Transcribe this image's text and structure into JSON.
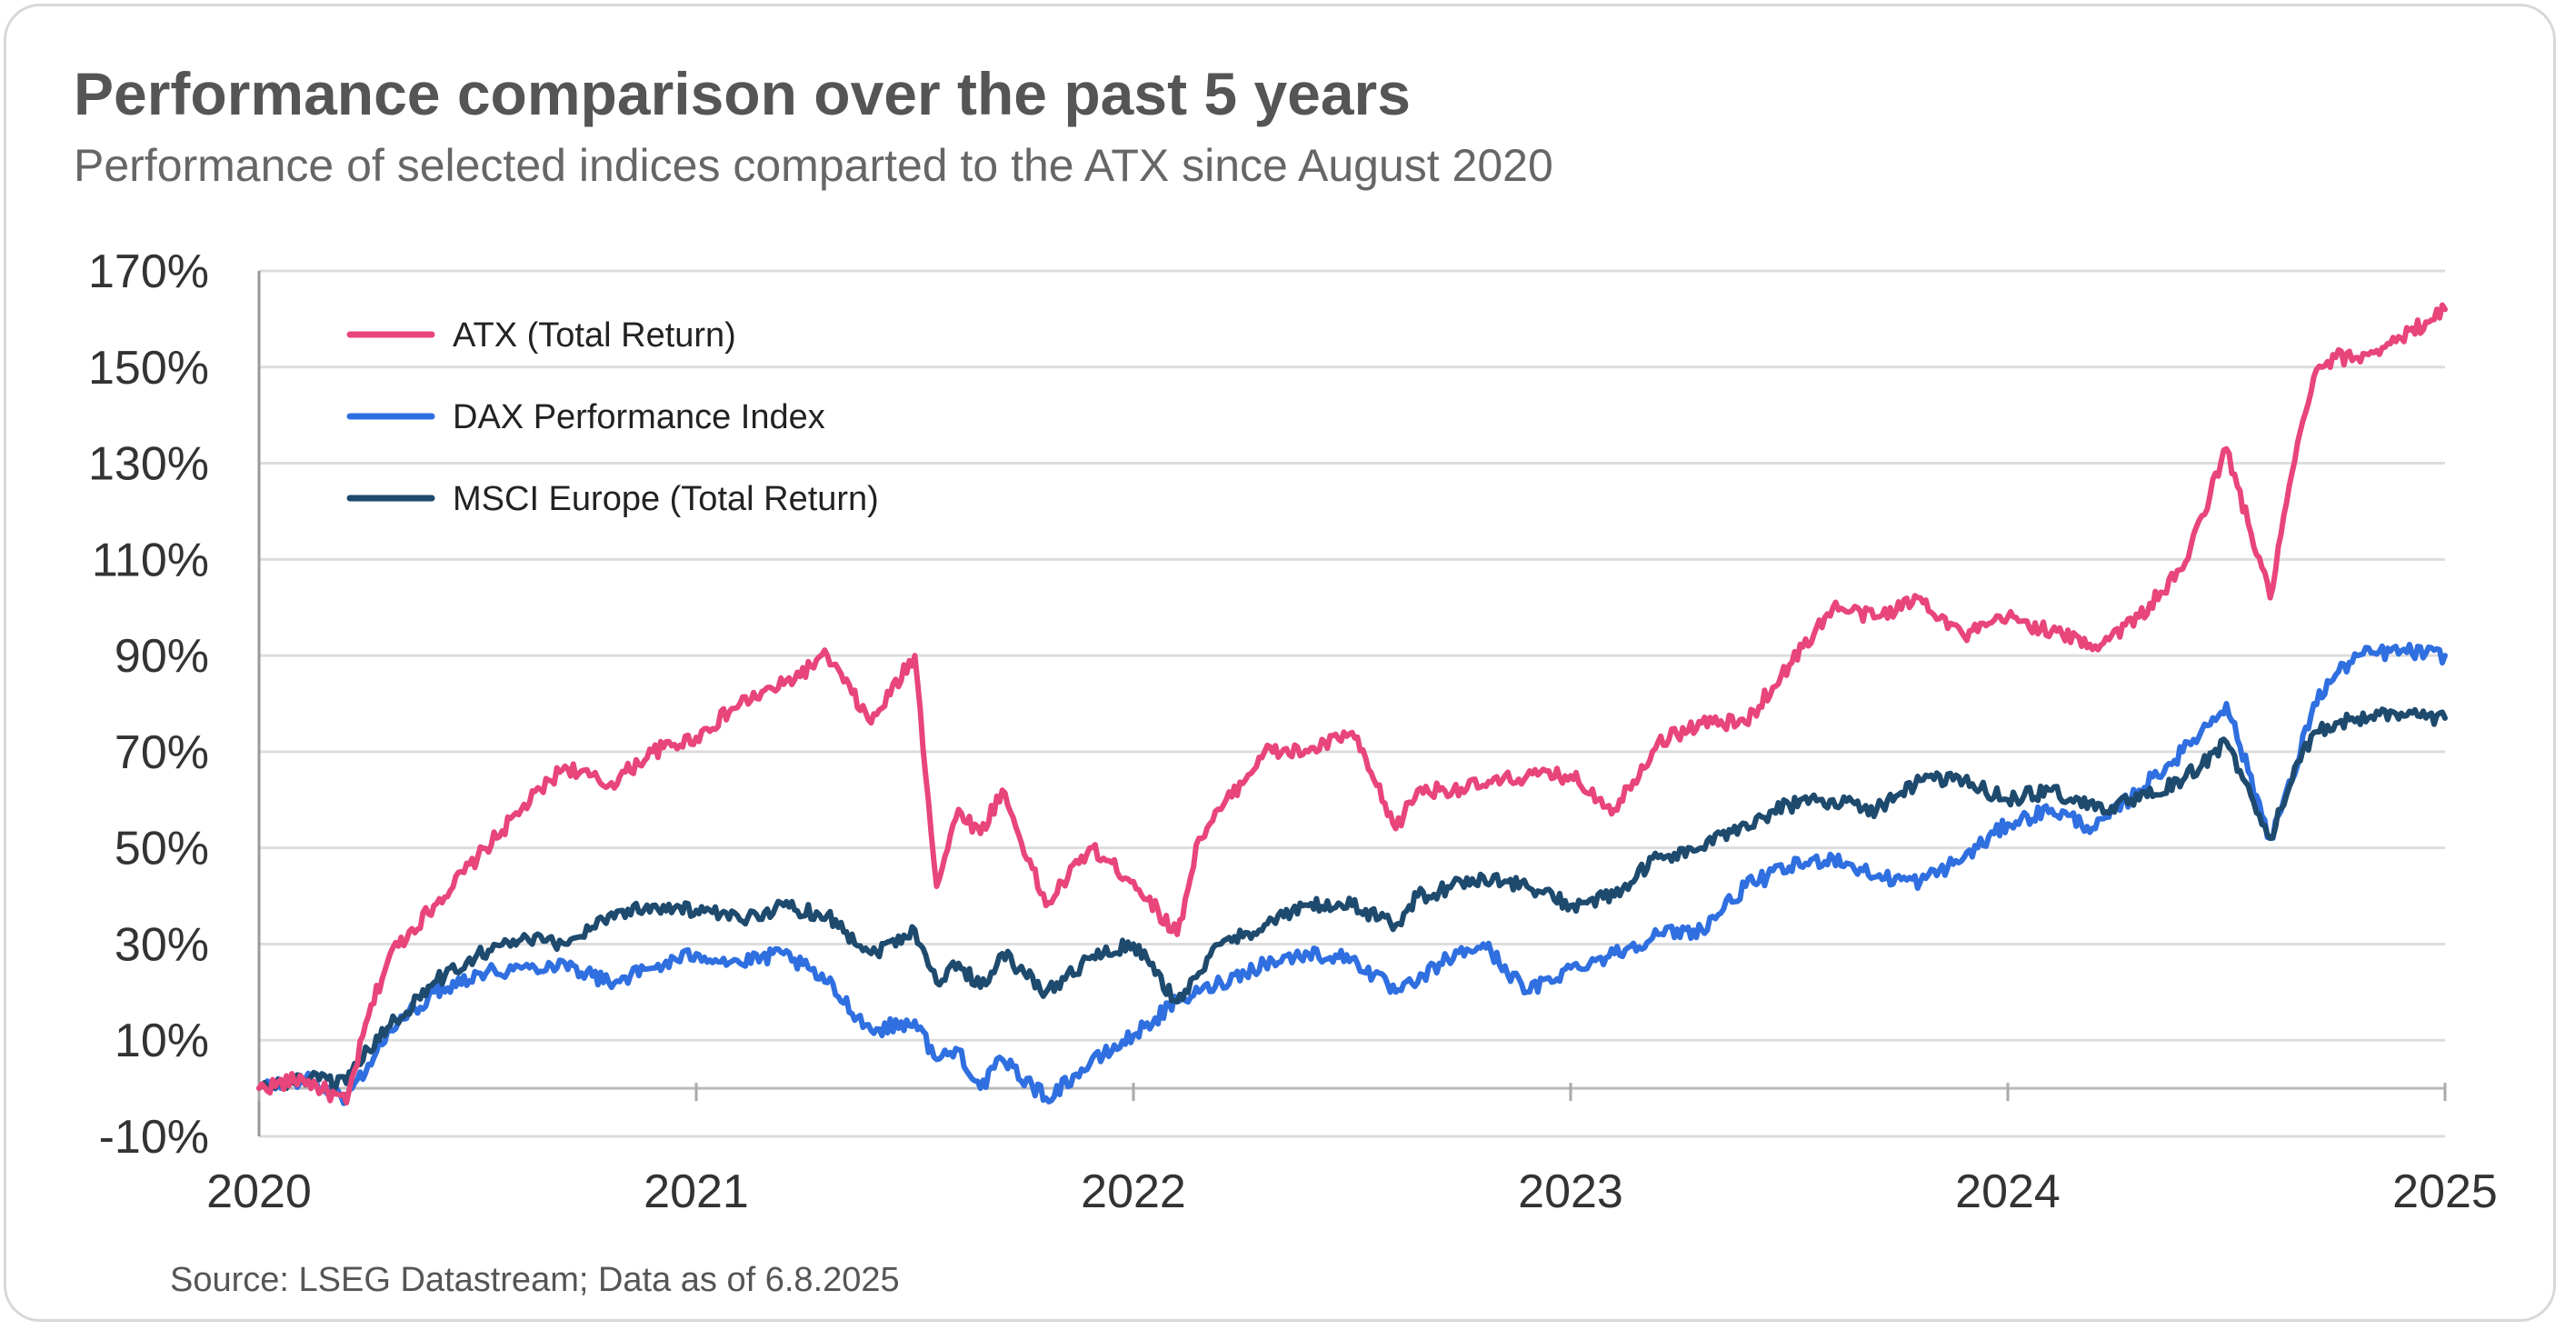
{
  "chart_data": {
    "type": "line",
    "title": "Performance comparison over the past 5 years",
    "subtitle": "Performance of selected indices comparted to the ATX since August 2020",
    "source": "Source: LSEG Datastream; Data as of 6.8.2025",
    "xlabel": "",
    "ylabel": "",
    "xlim": [
      2020.0,
      2025.0
    ],
    "ylim": [
      -10,
      170
    ],
    "x_ticks": [
      "2020",
      "2021",
      "2022",
      "2023",
      "2024",
      "2025"
    ],
    "y_ticks": [
      "-10%",
      "10%",
      "30%",
      "50%",
      "70%",
      "90%",
      "110%",
      "130%",
      "150%",
      "170%"
    ],
    "grid": "horizontal",
    "legend_position": "top-left",
    "x": [
      2020.0,
      2020.1,
      2020.2,
      2020.25,
      2020.3,
      2020.4,
      2020.5,
      2020.6,
      2020.7,
      2020.8,
      2020.9,
      2021.0,
      2021.1,
      2021.2,
      2021.3,
      2021.4,
      2021.5,
      2021.55,
      2021.6,
      2021.65,
      2021.7,
      2021.8,
      2021.9,
      2022.0,
      2022.1,
      2022.15,
      2022.2,
      2022.3,
      2022.4,
      2022.5,
      2022.6,
      2022.65,
      2022.7,
      2022.8,
      2022.9,
      2023.0,
      2023.1,
      2023.2,
      2023.3,
      2023.4,
      2023.5,
      2023.6,
      2023.7,
      2023.8,
      2023.9,
      2024.0,
      2024.1,
      2024.2,
      2024.3,
      2024.4,
      2024.5,
      2024.6,
      2024.65,
      2024.7,
      2024.75,
      2024.8,
      2024.9,
      2025.0
    ],
    "series": [
      {
        "name": "ATX (Total Return)",
        "color": "#e8457a",
        "values": [
          0,
          2,
          -3,
          15,
          28,
          38,
          48,
          58,
          67,
          63,
          70,
          73,
          80,
          84,
          90,
          76,
          90,
          42,
          58,
          53,
          62,
          38,
          50,
          43,
          32,
          52,
          58,
          70,
          70,
          74,
          54,
          62,
          62,
          63,
          65,
          65,
          58,
          72,
          76,
          76,
          88,
          100,
          98,
          102,
          94,
          98,
          95,
          92,
          98,
          108,
          133,
          102,
          128,
          148,
          152,
          152,
          156,
          162
        ]
      },
      {
        "name": "DAX Performance Index",
        "color": "#2f6fe0",
        "values": [
          0,
          2,
          -2,
          5,
          12,
          20,
          24,
          25,
          26,
          22,
          25,
          28,
          26,
          28,
          22,
          12,
          14,
          6,
          8,
          0,
          6,
          -2,
          5,
          11,
          18,
          20,
          22,
          26,
          28,
          27,
          20,
          22,
          26,
          30,
          20,
          25,
          28,
          32,
          33,
          42,
          46,
          48,
          44,
          43,
          48,
          55,
          58,
          54,
          62,
          70,
          80,
          52,
          64,
          80,
          86,
          90,
          91,
          90
        ]
      },
      {
        "name": "MSCI Europe (Total Return)",
        "color": "#1e4a6e",
        "values": [
          0,
          2,
          1,
          8,
          13,
          22,
          28,
          31,
          30,
          36,
          38,
          37,
          35,
          38,
          36,
          28,
          33,
          22,
          26,
          21,
          28,
          20,
          27,
          30,
          18,
          24,
          30,
          34,
          38,
          38,
          34,
          40,
          41,
          44,
          42,
          38,
          40,
          48,
          50,
          55,
          59,
          60,
          58,
          64,
          64,
          60,
          62,
          58,
          60,
          64,
          72,
          52,
          64,
          74,
          76,
          77,
          78,
          77
        ]
      }
    ]
  }
}
